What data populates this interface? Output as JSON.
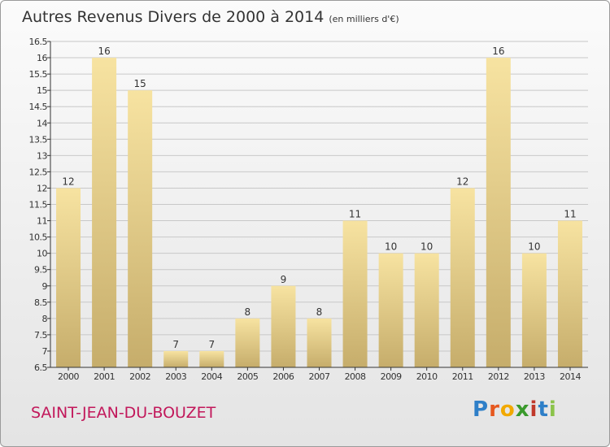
{
  "header": {
    "title": "Autres Revenus Divers de 2000 à 2014",
    "subtitle": "(en milliers d'€)"
  },
  "footer": {
    "commune": "SAINT-JEAN-DU-BOUZET",
    "logo_letters": [
      "P",
      "r",
      "o",
      "x",
      "i",
      "t",
      "i"
    ],
    "logo_colors": [
      "#2e7fc8",
      "#e6581f",
      "#f2a900",
      "#3a9a2c",
      "#c0392b",
      "#2e7fc8",
      "#8bc34a"
    ]
  },
  "chart_data": {
    "type": "bar",
    "title": "Autres Revenus Divers de 2000 à 2014",
    "subtitle": "(en milliers d'€)",
    "categories": [
      "2000",
      "2001",
      "2002",
      "2003",
      "2004",
      "2005",
      "2006",
      "2007",
      "2008",
      "2009",
      "2010",
      "2011",
      "2012",
      "2013",
      "2014"
    ],
    "values": [
      12,
      16,
      15,
      7,
      7,
      8,
      9,
      8,
      11,
      10,
      10,
      12,
      16,
      10,
      11
    ],
    "data_labels": [
      "12",
      "16",
      "15",
      "7",
      "7",
      "8",
      "9",
      "8",
      "11",
      "10",
      "10",
      "12",
      "16",
      "10",
      "11"
    ],
    "ylim": [
      6.5,
      16.5
    ],
    "yticks": [
      6.5,
      7,
      7.5,
      8,
      8.5,
      9,
      9.5,
      10,
      10.5,
      11,
      11.5,
      12,
      12.5,
      13,
      13.5,
      14,
      14.5,
      15,
      15.5,
      16,
      16.5
    ],
    "ytick_labels": [
      "6.5",
      "7",
      "7.5",
      "8",
      "8.5",
      "9",
      "9.5",
      "10",
      "10.5",
      "11",
      "11.5",
      "12",
      "12.5",
      "13",
      "13.5",
      "14",
      "14.5",
      "15",
      "15.5",
      "16",
      "16.5"
    ],
    "grid": true,
    "bar_color_light": "#f7e3a1",
    "bar_color_dark": "#c6ad6b",
    "grid_color": "#c8c8c8"
  }
}
